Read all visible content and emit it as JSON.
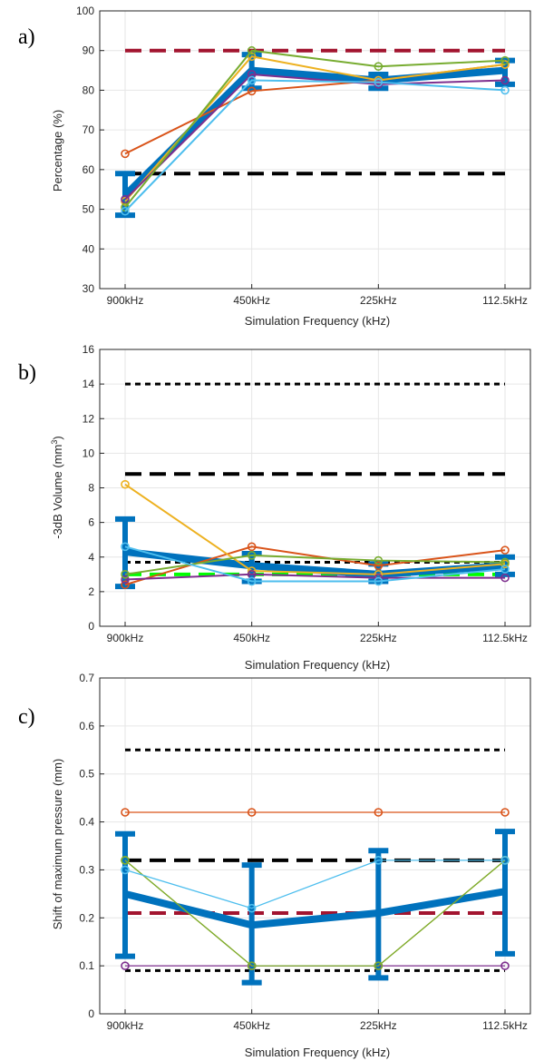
{
  "chart_data": [
    {
      "type": "line",
      "panel_label": "a)",
      "xlabel": "Simulation Frequency (kHz)",
      "ylabel": "Percentage (%)",
      "categories": [
        "900kHz",
        "450kHz",
        "225kHz",
        "112.5kHz"
      ],
      "ylim": [
        30,
        100
      ],
      "yticks": [
        30,
        40,
        50,
        60,
        70,
        80,
        90,
        100
      ],
      "grid": true,
      "mean": {
        "values": [
          53.5,
          85.0,
          82.5,
          85.0
        ],
        "err_low": [
          48.5,
          80.5,
          80.5,
          81.5
        ],
        "err_high": [
          59.0,
          89.0,
          84.0,
          87.5
        ],
        "color": "#0072BD"
      },
      "series": [
        {
          "values": [
            64,
            79.8,
            82.5,
            86.5
          ],
          "color": "#D95319",
          "marker": true
        },
        {
          "values": [
            52,
            88.5,
            82.5,
            86.5
          ],
          "color": "#EDB120",
          "marker": true
        },
        {
          "values": [
            52.5,
            84,
            81.5,
            82.5
          ],
          "color": "#7E2F8E",
          "marker": true
        },
        {
          "values": [
            50.5,
            90,
            86,
            87.5
          ],
          "color": "#77AC30",
          "marker": true
        },
        {
          "values": [
            49.5,
            82.5,
            82,
            80
          ],
          "color": "#4DBEEE",
          "marker": true
        }
      ],
      "reference_lines": [
        {
          "y": 90,
          "color": "#A2142F",
          "style": "long-dash"
        },
        {
          "y": 59,
          "color": "#000000",
          "style": "long-dash"
        }
      ]
    },
    {
      "type": "line",
      "panel_label": "b)",
      "xlabel": "Simulation Frequency (kHz)",
      "ylabel": "-3dB Volume (mm",
      "ylabel_sup": "3",
      "ylabel_tail": ")",
      "categories": [
        "900kHz",
        "450kHz",
        "225kHz",
        "112.5kHz"
      ],
      "ylim": [
        0,
        16
      ],
      "yticks": [
        0,
        2,
        4,
        6,
        8,
        10,
        12,
        14,
        16
      ],
      "grid": true,
      "mean": {
        "values": [
          4.3,
          3.5,
          3.0,
          3.5
        ],
        "err_low": [
          2.3,
          2.6,
          2.6,
          3.0
        ],
        "err_high": [
          6.2,
          4.2,
          3.6,
          4.0
        ],
        "color": "#0072BD"
      },
      "series": [
        {
          "values": [
            2.4,
            4.6,
            3.5,
            4.4
          ],
          "color": "#D95319",
          "marker": true
        },
        {
          "values": [
            8.2,
            3.2,
            3.0,
            3.6
          ],
          "color": "#EDB120",
          "marker": true
        },
        {
          "values": [
            2.7,
            3.0,
            2.8,
            2.8
          ],
          "color": "#7E2F8E",
          "marker": true
        },
        {
          "values": [
            3.0,
            4.1,
            3.8,
            3.7
          ],
          "color": "#77AC30",
          "marker": true
        },
        {
          "values": [
            4.6,
            2.6,
            2.6,
            3.3
          ],
          "color": "#4DBEEE",
          "marker": true
        }
      ],
      "reference_lines": [
        {
          "y": 14,
          "color": "#000000",
          "style": "short-dash"
        },
        {
          "y": 8.8,
          "color": "#000000",
          "style": "long-dash"
        },
        {
          "y": 3.7,
          "color": "#000000",
          "style": "short-dash"
        },
        {
          "y": 3.0,
          "color": "#00FF00",
          "style": "long-dash"
        }
      ]
    },
    {
      "type": "line",
      "panel_label": "c)",
      "xlabel": "Simulation Frequency (kHz)",
      "ylabel": "Shift of maximum pressure (mm)",
      "categories": [
        "900kHz",
        "450kHz",
        "225kHz",
        "112.5kHz"
      ],
      "ylim": [
        0,
        0.7
      ],
      "yticks": [
        0,
        0.1,
        0.2,
        0.3,
        0.4,
        0.5,
        0.6,
        0.7
      ],
      "ytick_labels": [
        "0",
        "0.1",
        "0.2",
        "0.3",
        "0.4",
        "0.5",
        "0.6",
        "0.7"
      ],
      "grid": true,
      "mean": {
        "values": [
          0.25,
          0.185,
          0.21,
          0.255
        ],
        "err_low": [
          0.12,
          0.065,
          0.075,
          0.125
        ],
        "err_high": [
          0.375,
          0.31,
          0.34,
          0.38
        ],
        "color": "#0072BD"
      },
      "series": [
        {
          "values": [
            0.42,
            0.42,
            0.42,
            0.42
          ],
          "color": "#D95319",
          "marker": true
        },
        {
          "values": [
            0.32,
            0.1,
            0.1,
            0.32
          ],
          "color": "#EDB120",
          "marker": true
        },
        {
          "values": [
            0.1,
            0.1,
            0.1,
            0.1
          ],
          "color": "#7E2F8E",
          "marker": true
        },
        {
          "values": [
            0.32,
            0.1,
            0.1,
            0.32
          ],
          "color": "#77AC30",
          "marker": true
        },
        {
          "values": [
            0.3,
            0.22,
            0.32,
            0.32
          ],
          "color": "#4DBEEE",
          "marker": true
        }
      ],
      "reference_lines": [
        {
          "y": 0.55,
          "color": "#000000",
          "style": "short-dash"
        },
        {
          "y": 0.32,
          "color": "#000000",
          "style": "long-dash"
        },
        {
          "y": 0.21,
          "color": "#A2142F",
          "style": "long-dash"
        },
        {
          "y": 0.09,
          "color": "#000000",
          "style": "short-dash"
        }
      ]
    }
  ]
}
